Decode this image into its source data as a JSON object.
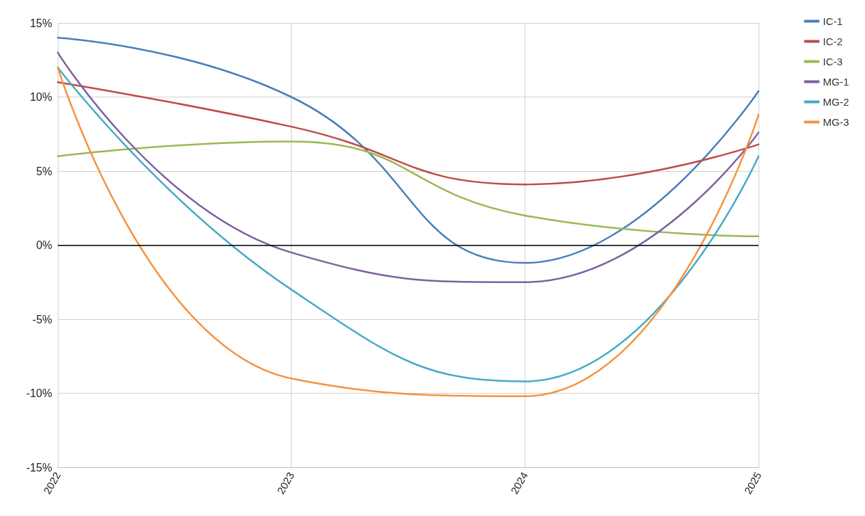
{
  "chart_data": {
    "type": "line",
    "categories": [
      "2022",
      "2023",
      "2024",
      "2025"
    ],
    "series": [
      {
        "name": "IC-1",
        "color": "#4a7ebb",
        "values": [
          14,
          10,
          -1.2,
          10.4
        ]
      },
      {
        "name": "IC-2",
        "color": "#be4b48",
        "values": [
          11,
          8,
          4.1,
          6.8
        ]
      },
      {
        "name": "IC-3",
        "color": "#98b954",
        "values": [
          6,
          7,
          2,
          0.6
        ]
      },
      {
        "name": "MG-1",
        "color": "#7d60a0",
        "values": [
          13,
          -0.5,
          -2.5,
          7.6
        ]
      },
      {
        "name": "MG-2",
        "color": "#46aac5",
        "values": [
          12,
          -3,
          -9.2,
          6
        ]
      },
      {
        "name": "MG-3",
        "color": "#f69240",
        "values": [
          12,
          -9,
          -10.2,
          8.8
        ]
      }
    ],
    "ylim": [
      -15,
      15
    ],
    "yticks": [
      {
        "value": -15,
        "label": "-15%"
      },
      {
        "value": -10,
        "label": "-10%"
      },
      {
        "value": -5,
        "label": "-5%"
      },
      {
        "value": 0,
        "label": "0%"
      },
      {
        "value": 5,
        "label": "5%"
      },
      {
        "value": 10,
        "label": "10%"
      },
      {
        "value": 15,
        "label": "15%"
      }
    ],
    "ref_lines": [
      {
        "axis": "y",
        "value": 0,
        "color": "#000000"
      }
    ],
    "grid": true,
    "legend": "top right",
    "marker": "none",
    "line_style": "solid"
  }
}
